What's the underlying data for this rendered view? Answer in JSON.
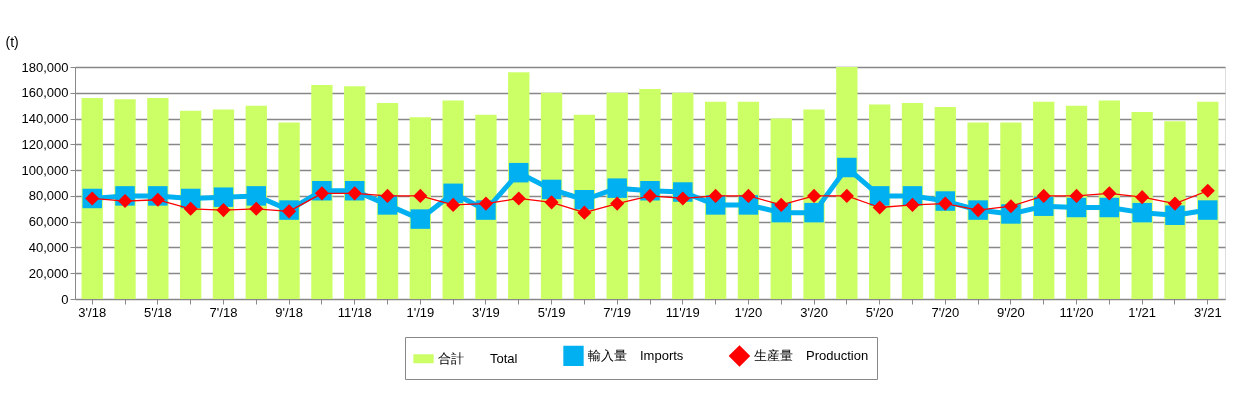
{
  "chart_data": {
    "type": "bar",
    "ylabel": "(t)",
    "categories": [
      "3'/18",
      null,
      "5'/18",
      null,
      "7'/18",
      null,
      "9'/18",
      null,
      "11'/18",
      null,
      "1'/19",
      null,
      "3'/19",
      null,
      "5'/19",
      null,
      "7'/19",
      null,
      "11'/19",
      null,
      "1'/20",
      null,
      "3'/20",
      null,
      "5'/20",
      null,
      "7'/20",
      null,
      "9'/20",
      null,
      "11'/20",
      null,
      "1'/21",
      null,
      "3'/21"
    ],
    "series": [
      {
        "name": "合計　　Total",
        "color": "#ccff66",
        "values": [
          156000,
          155000,
          156000,
          146000,
          147000,
          150000,
          137000,
          166000,
          165000,
          152000,
          141000,
          154000,
          143000,
          176000,
          160000,
          143000,
          160000,
          163000,
          160000,
          153000,
          153000,
          140000,
          147000,
          180000,
          151000,
          152000,
          149000,
          137000,
          137000,
          153000,
          150000,
          154000,
          145000,
          138000,
          153000
        ]
      },
      {
        "name": "輸入量　Imports",
        "type": "line",
        "marker": "square",
        "color": "#00b0f0",
        "values": [
          78000,
          80000,
          80000,
          78000,
          79000,
          80000,
          69000,
          84000,
          84000,
          73000,
          62000,
          82000,
          69000,
          98000,
          85000,
          77000,
          86000,
          84000,
          83000,
          73000,
          73000,
          67000,
          67000,
          102000,
          80000,
          80000,
          76000,
          69000,
          66000,
          72000,
          71000,
          71000,
          67000,
          65000,
          69000
        ]
      },
      {
        "name": "生産量　Production",
        "type": "line",
        "marker": "diamond",
        "color": "#ff0000",
        "values": [
          78000,
          76000,
          77000,
          70000,
          69000,
          70000,
          68000,
          82000,
          82000,
          80000,
          80000,
          73000,
          74000,
          78000,
          75000,
          67000,
          74000,
          80000,
          78000,
          80000,
          80000,
          73000,
          80000,
          80000,
          71000,
          73000,
          74000,
          69000,
          72000,
          80000,
          80000,
          82000,
          79000,
          74000,
          84000
        ]
      }
    ],
    "ylim": [
      0,
      180000
    ],
    "yticks": [
      0,
      {
        "value": 20000,
        "label": "20,000"
      },
      {
        "value": 40000,
        "label": "40,000"
      },
      {
        "value": 60000,
        "label": "60,000"
      },
      {
        "value": 80000,
        "label": "80,000"
      },
      {
        "value": 100000,
        "label": "100,000"
      },
      {
        "value": 120000,
        "label": "120,000"
      },
      {
        "value": 140000,
        "label": "140,000"
      },
      {
        "value": 160000,
        "label": "160,000"
      },
      {
        "value": 180000,
        "label": "180,000"
      }
    ],
    "grid": "y",
    "legend": "bottom",
    "line_style": "solid"
  }
}
